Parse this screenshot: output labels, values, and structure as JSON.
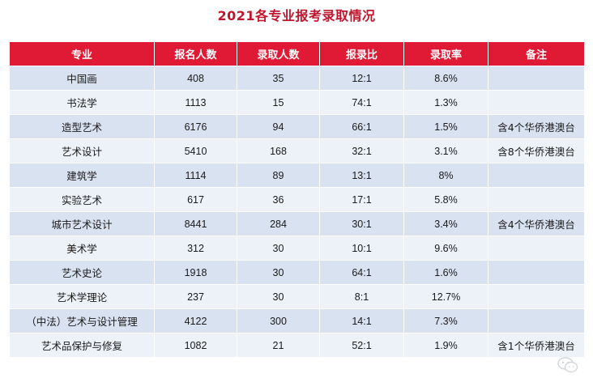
{
  "title": "2021各专业报考录取情况",
  "columns": [
    "专业",
    "报名人数",
    "录取人数",
    "报录比",
    "录取率",
    "备注"
  ],
  "rows": [
    [
      "中国画",
      "408",
      "35",
      "12:1",
      "8.6%",
      ""
    ],
    [
      "书法学",
      "1113",
      "15",
      "74:1",
      "1.3%",
      ""
    ],
    [
      "造型艺术",
      "6176",
      "94",
      "66:1",
      "1.5%",
      "含4个华侨港澳台"
    ],
    [
      "艺术设计",
      "5410",
      "168",
      "32:1",
      "3.1%",
      "含8个华侨港澳台"
    ],
    [
      "建筑学",
      "1114",
      "89",
      "13:1",
      "8%",
      ""
    ],
    [
      "实验艺术",
      "617",
      "36",
      "17:1",
      "5.8%",
      ""
    ],
    [
      "城市艺术设计",
      "8441",
      "284",
      "30:1",
      "3.4%",
      "含4个华侨港澳台"
    ],
    [
      "美术学",
      "312",
      "30",
      "10:1",
      "9.6%",
      ""
    ],
    [
      "艺术史论",
      "1918",
      "30",
      "64:1",
      "1.6%",
      ""
    ],
    [
      "艺术学理论",
      "237",
      "30",
      "8:1",
      "12.7%",
      ""
    ],
    [
      "（中法）艺术与设计管理",
      "4122",
      "300",
      "14:1",
      "7.3%",
      ""
    ],
    [
      "艺术品保护与修复",
      "1082",
      "21",
      "52:1",
      "1.9%",
      "含1个华侨港澳台"
    ]
  ],
  "colors": {
    "title": "#c0172f",
    "header_bg": "#e01a35",
    "row_odd": "#d9e2f1",
    "row_even": "#edf1f8"
  },
  "icons": {
    "watermark": "wechat-logo-icon"
  }
}
